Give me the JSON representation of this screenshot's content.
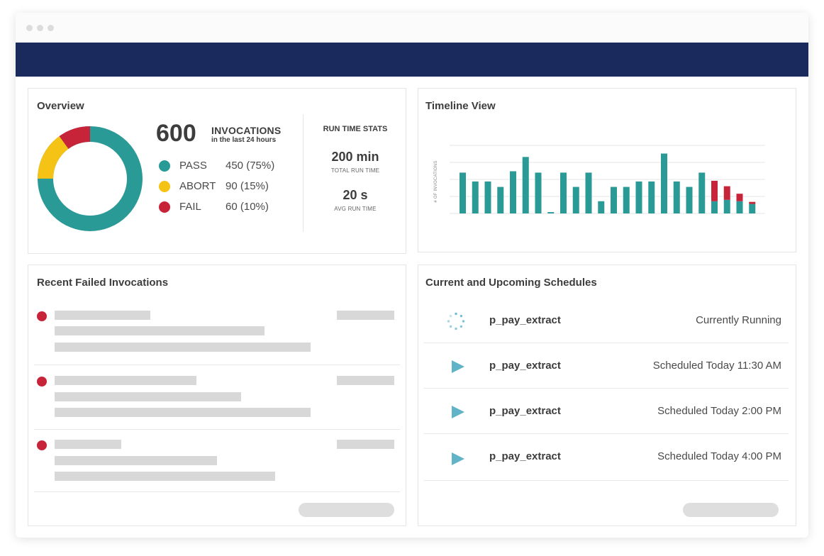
{
  "colors": {
    "nav": "#1a2a5c",
    "pass": "#2a9a96",
    "abort": "#f5c216",
    "fail": "#c7243a"
  },
  "overview": {
    "title": "Overview",
    "total": "600",
    "invocations_label": "INVOCATIONS",
    "period": "in the last 24 hours",
    "legend": [
      {
        "label": "PASS",
        "value": "450 (75%)",
        "fraction": 0.75
      },
      {
        "label": "ABORT",
        "value": "90 (15%)",
        "fraction": 0.15
      },
      {
        "label": "FAIL",
        "value": "60 (10%)",
        "fraction": 0.1
      }
    ],
    "runtime": {
      "title": "RUN TIME STATS",
      "total_value": "200 min",
      "total_label": "TOTAL RUN TIME",
      "avg_value": "20 s",
      "avg_label": "AVG RUN TIME"
    }
  },
  "timeline": {
    "title": "Timeline View",
    "chart_data": {
      "type": "bar",
      "ylabel": "# OF INVOCATIONS",
      "gridlines": 5,
      "ymax": 100,
      "series": [
        {
          "name": "",
          "color": "#2a9a96",
          "values": [
            60,
            47,
            47,
            39,
            62,
            83,
            60,
            2,
            60,
            39,
            60,
            18,
            39,
            39,
            47,
            47,
            88,
            47,
            39,
            60,
            18,
            20,
            18,
            14
          ]
        },
        {
          "name": "",
          "color": "#c7243a",
          "values": [
            0,
            0,
            0,
            0,
            0,
            0,
            0,
            0,
            0,
            0,
            0,
            0,
            0,
            0,
            0,
            0,
            0,
            0,
            0,
            0,
            30,
            20,
            11,
            3
          ]
        }
      ]
    }
  },
  "failed": {
    "title": "Recent Failed Invocations"
  },
  "schedules": {
    "title": "Current and Upcoming Schedules",
    "items": [
      {
        "name": "p_pay_extract",
        "status": "Currently Running",
        "icon": "spinner-icon"
      },
      {
        "name": "p_pay_extract",
        "status": "Scheduled Today 11:30 AM",
        "icon": "play-icon"
      },
      {
        "name": "p_pay_extract",
        "status": "Scheduled Today 2:00 PM",
        "icon": "play-icon"
      },
      {
        "name": "p_pay_extract",
        "status": "Scheduled Today 4:00 PM",
        "icon": "play-icon"
      }
    ]
  }
}
